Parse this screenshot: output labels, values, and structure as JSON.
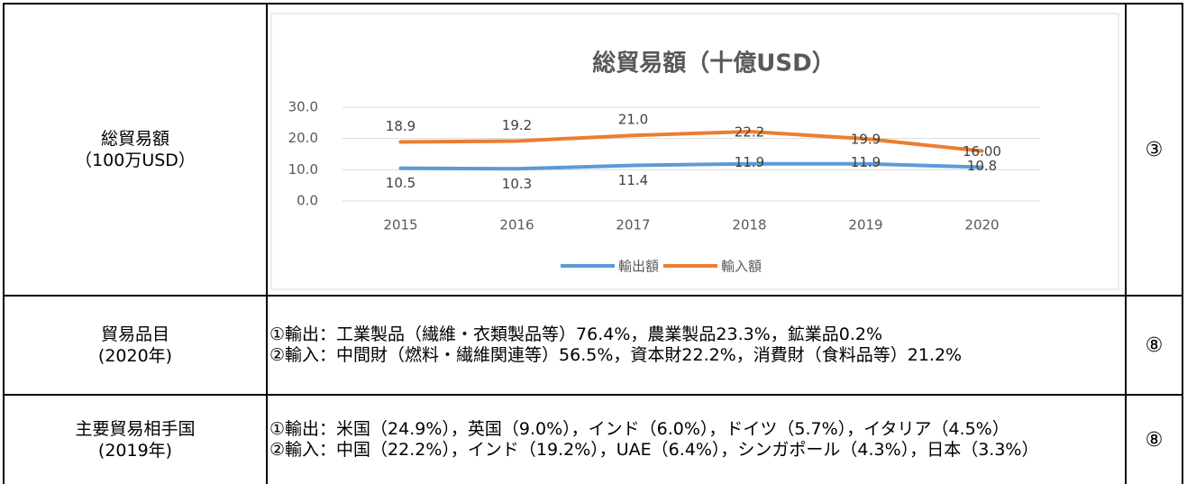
{
  "table": {
    "rows": [
      {
        "label": [
          "総貿易額",
          "（100万USD）"
        ],
        "chart_data": {
          "type": "line",
          "title": "総貿易額（十億USD）",
          "categories": [
            "2015",
            "2016",
            "2017",
            "2018",
            "2019",
            "2020"
          ],
          "series": [
            {
              "name": "輸出額",
              "color": "#5b9bd5",
              "values": [
                10.5,
                10.3,
                11.4,
                11.9,
                11.9,
                10.8
              ]
            },
            {
              "name": "輸入額",
              "color": "#ed7d31",
              "values": [
                18.9,
                19.2,
                21.0,
                22.2,
                19.9,
                16.0
              ],
              "value_labels": [
                "18.9",
                "19.2",
                "21.0",
                "22.2",
                "19.9",
                "16.00"
              ]
            }
          ],
          "ylim": [
            0,
            30
          ],
          "yticks": [
            {
              "value": 0,
              "label": "0.0"
            },
            {
              "value": 10,
              "label": "10.0"
            },
            {
              "value": 20,
              "label": "20.0"
            },
            {
              "value": 30,
              "label": "30.0"
            }
          ],
          "grid": true,
          "legend": "bottom"
        },
        "ref": "③"
      },
      {
        "label": [
          "貿易品目",
          "(2020年)"
        ],
        "content": [
          "①輸出：工業製品（繊維・衣類製品等）76.4%，農業製品23.3%，鉱業品0.2%",
          "②輸入：中間財（燃料・繊維関連等）56.5%，資本財22.2%，消費財（食料品等）21.2%"
        ],
        "ref": "⑧"
      },
      {
        "label": [
          "主要貿易相手国",
          "(2019年)"
        ],
        "content": [
          "①輸出：米国（24.9%），英国（9.0%），インド（6.0%），ドイツ（5.7%），イタリア（4.5%）",
          "②輸入：中国（22.2%），インド（19.2%），UAE（6.4%），シンガポール（4.3%），日本（3.3%）"
        ],
        "ref": "⑧"
      }
    ]
  }
}
